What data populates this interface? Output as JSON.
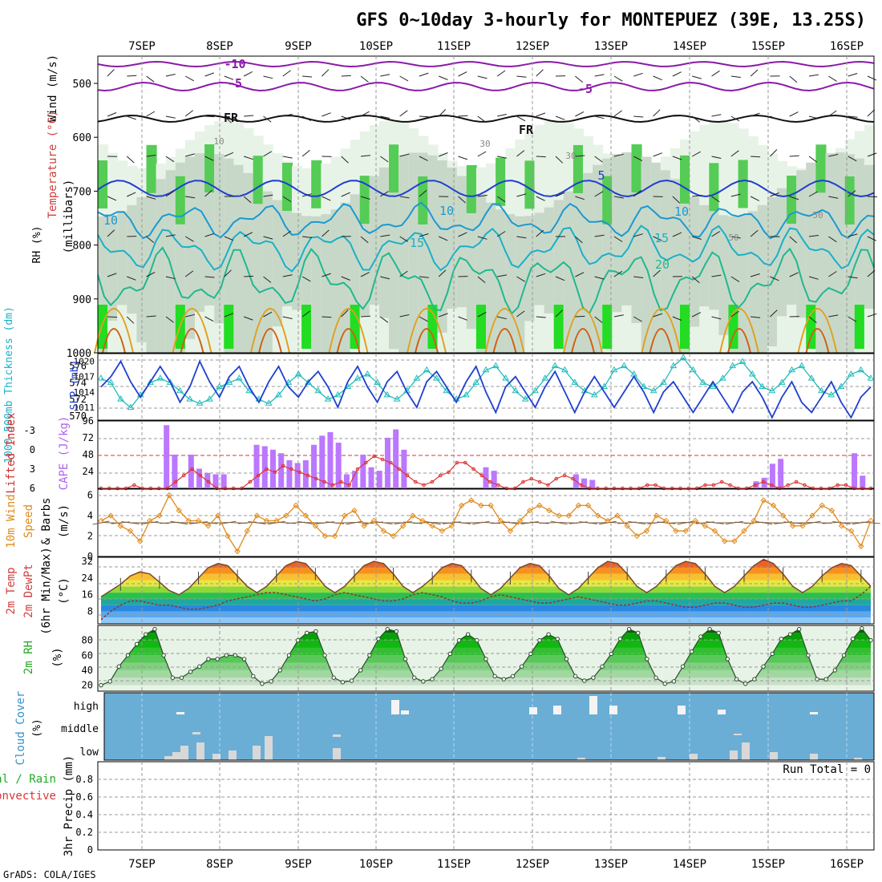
{
  "title": "GFS 0~10day 3-hourly for MONTEPUEZ (39E, 13.25S)",
  "footer": "GrADS: COLA/IGES",
  "dates": [
    "7SEP",
    "8SEP",
    "9SEP",
    "10SEP",
    "11SEP",
    "12SEP",
    "13SEP",
    "14SEP",
    "15SEP",
    "16SEP"
  ],
  "colors": {
    "temp_line": "#3a3a3a",
    "rh_green": "#22bb22",
    "cape_bar": "#bb77ff",
    "lifted_index": "#dd3333",
    "wind_speed": "#e08a1a",
    "slp_line": "#1f3fd0",
    "thickness_line": "#22bbbb",
    "cloud_bg": "#6aaed6",
    "cloud_bar": "#d8d8d8"
  },
  "panels": {
    "upper": {
      "label_wind": "Wind (m/s)",
      "label_temp": "Temperature (°C)",
      "label_rh": "RH (%)",
      "label_mb": "(millibars)",
      "yticks": [
        "500",
        "600",
        "700",
        "800",
        "900",
        "1000"
      ],
      "contour_labels": [
        "-10",
        "-5",
        "-5",
        "FR",
        "FR",
        "5",
        "10",
        "10",
        "10",
        "15",
        "15",
        "20",
        "10",
        "30",
        "30",
        "50",
        "50"
      ]
    },
    "slp": {
      "label_thick": "1000-500mb Thickness (dm)",
      "label_slp": "SLP (mb)",
      "left_ticks": [
        "576",
        "574",
        "572",
        "570"
      ],
      "right_ticks": [
        "1020",
        "1017",
        "1014",
        "1011"
      ]
    },
    "cape": {
      "label_li": "Lifted Index",
      "label_cape": "CAPE (J/kg)",
      "left_ticks": [
        "-3",
        "0",
        "3",
        "6"
      ],
      "right_ticks": [
        "96",
        "72",
        "48",
        "24"
      ]
    },
    "wind": {
      "label_a": "10m Wind",
      "label_b": "Speed",
      "label_c": "& Barbs",
      "label_unit": "(m/s)",
      "yticks": [
        "6",
        "4",
        "2",
        "0"
      ]
    },
    "temp": {
      "label_a": "2m Temp",
      "label_b": "2m DewPt",
      "label_c": "(6hr Min/Max)",
      "label_unit": "(°C)",
      "yticks": [
        "32",
        "24",
        "16",
        "8"
      ]
    },
    "rh": {
      "label_a": "2m RH",
      "label_unit": "(%)",
      "yticks": [
        "80",
        "60",
        "40",
        "20"
      ]
    },
    "cloud": {
      "label_a": "Cloud Cover",
      "label_unit": "(%)",
      "rows": [
        "high",
        "middle",
        "low"
      ]
    },
    "precip": {
      "label_a": "Total / Rain",
      "label_b": "Convective",
      "label_c": "3hr Precip (mm)",
      "run_total": "Run Total = 0",
      "yticks": [
        "0.8",
        "0.6",
        "0.4",
        "0.2",
        "0"
      ]
    }
  },
  "chart_data": {
    "type": "line",
    "x": [
      "7SEP",
      "8SEP",
      "9SEP",
      "10SEP",
      "11SEP",
      "12SEP",
      "13SEP",
      "14SEP",
      "15SEP",
      "16SEP"
    ],
    "slp_mb": [
      1015,
      1017,
      1020,
      1016,
      1013,
      1016,
      1019,
      1016,
      1012,
      1015,
      1020,
      1016,
      1013,
      1017,
      1019,
      1015,
      1012,
      1016,
      1019,
      1015,
      1013,
      1016,
      1018,
      1015,
      1011,
      1016,
      1019,
      1015,
      1012,
      1016,
      1018,
      1014,
      1011,
      1016,
      1018,
      1015,
      1012,
      1016,
      1019,
      1014,
      1010,
      1015,
      1017,
      1014,
      1011,
      1015,
      1018,
      1014,
      1010,
      1014,
      1017,
      1014,
      1011,
      1014,
      1017,
      1014,
      1010,
      1014,
      1016,
      1013,
      1010,
      1013,
      1016,
      1013,
      1010,
      1014,
      1016,
      1013,
      1009,
      1013,
      1016,
      1012,
      1010,
      1013,
      1016,
      1012,
      1009,
      1013,
      1015
    ],
    "thickness_dm": [
      574.5,
      574.0,
      572.0,
      571.0,
      572.5,
      574.0,
      574.5,
      574.0,
      573.0,
      572.0,
      571.5,
      572.0,
      573.5,
      574.0,
      574.5,
      573.0,
      572.0,
      571.5,
      572.5,
      574.0,
      575.0,
      574.0,
      573.0,
      572.0,
      572.5,
      573.5,
      574.5,
      575.0,
      574.0,
      572.5,
      572.0,
      573.0,
      574.5,
      575.5,
      574.5,
      573.0,
      572.0,
      572.5,
      574.0,
      575.5,
      576.0,
      574.5,
      573.0,
      572.0,
      573.0,
      574.5,
      576.0,
      575.5,
      574.0,
      573.0,
      572.5,
      573.5,
      575.5,
      576.0,
      575.0,
      573.5,
      573.0,
      574.0,
      576.0,
      577.0,
      575.5,
      574.0,
      573.5,
      574.5,
      576.0,
      576.5,
      575.0,
      573.5,
      573.0,
      574.0,
      575.5,
      576.0,
      574.5,
      573.0,
      572.5,
      573.5,
      575.0,
      575.5,
      574.5
    ],
    "cape_jkg": [
      0,
      0,
      0,
      0,
      0,
      0,
      0,
      0,
      90,
      48,
      0,
      48,
      28,
      22,
      20,
      20,
      0,
      0,
      0,
      62,
      60,
      55,
      50,
      40,
      36,
      40,
      62,
      75,
      80,
      65,
      20,
      25,
      48,
      30,
      25,
      72,
      84,
      55,
      0,
      0,
      0,
      0,
      0,
      0,
      0,
      0,
      0,
      30,
      25,
      0,
      0,
      0,
      0,
      0,
      0,
      0,
      0,
      0,
      20,
      14,
      12,
      0,
      0,
      0,
      0,
      0,
      0,
      0,
      0,
      0,
      0,
      0,
      0,
      0,
      0,
      0,
      0,
      0,
      0,
      0,
      10,
      15,
      35,
      42,
      0,
      0,
      0,
      0,
      0,
      0,
      0,
      0,
      50,
      18,
      0
    ],
    "lifted_index": [
      6,
      6,
      6,
      6,
      5.5,
      6,
      6,
      6,
      6,
      5,
      4,
      3,
      4,
      5,
      6,
      6,
      6,
      6,
      5,
      4,
      3,
      3.5,
      2.5,
      3,
      3.5,
      4,
      4.5,
      5,
      5.5,
      5,
      5.5,
      3,
      2,
      1,
      1.5,
      2,
      3,
      4,
      5,
      5.5,
      5,
      4,
      3.5,
      2,
      2,
      3,
      4,
      5,
      5.5,
      6,
      6,
      5,
      4.5,
      5,
      5.5,
      4.5,
      4,
      4.5,
      5.5,
      6,
      6,
      6,
      6,
      6,
      6,
      6,
      5.5,
      5.5,
      6,
      6,
      6,
      6,
      6,
      5.5,
      5.5,
      5,
      5.5,
      6,
      6,
      5.5,
      5,
      5.5,
      6,
      5.5,
      5,
      5.5,
      6,
      6,
      6,
      5.5,
      5.5,
      6,
      6,
      6
    ],
    "wind_speed_ms": [
      3.5,
      4,
      3,
      2.5,
      1.5,
      3.5,
      4,
      6,
      4.5,
      3.5,
      3.5,
      3,
      4,
      2,
      0.5,
      2.5,
      4,
      3.5,
      3.5,
      4,
      5,
      4,
      3,
      2,
      2,
      4,
      4.5,
      3,
      3.5,
      2.5,
      2,
      3,
      4,
      3.5,
      3,
      2.5,
      3,
      5,
      5.5,
      5,
      5,
      3.5,
      2.5,
      3.5,
      4.5,
      5,
      4.5,
      4,
      4,
      5,
      5,
      4,
      3.5,
      4,
      3,
      2,
      2.5,
      4,
      3.5,
      2.5,
      2.5,
      3.5,
      3,
      2.5,
      1.5,
      1.5,
      2.5,
      3.5,
      5.5,
      5,
      4,
      3,
      3,
      4,
      5,
      4.5,
      3,
      2.5,
      1,
      3.5
    ],
    "temp_2m_c": [
      15,
      18,
      21,
      25,
      27,
      26,
      22,
      18,
      16,
      19,
      24,
      29,
      31,
      30,
      25,
      20,
      17,
      20,
      25,
      30,
      32,
      31,
      26,
      20,
      17,
      20,
      25,
      30,
      32,
      31,
      26,
      20,
      17,
      20,
      24,
      29,
      31,
      30,
      25,
      19,
      16,
      19,
      24,
      29,
      31,
      30,
      25,
      19,
      16,
      19,
      24,
      29,
      32,
      31,
      26,
      20,
      17,
      20,
      25,
      30,
      32,
      31,
      26,
      20,
      17,
      20,
      25,
      30,
      33,
      31,
      26,
      20,
      17,
      20,
      25,
      29,
      31,
      30,
      25,
      20
    ],
    "dewpt_2m_c": [
      4,
      8,
      11,
      13,
      13,
      12,
      11,
      11,
      10,
      9,
      9,
      10,
      11,
      13,
      14,
      15,
      16,
      17,
      17,
      16,
      15,
      14,
      13,
      14,
      16,
      17,
      16,
      15,
      14,
      13,
      13,
      14,
      16,
      17,
      16,
      15,
      13,
      12,
      12,
      13,
      15,
      16,
      15,
      14,
      13,
      12,
      12,
      13,
      14,
      15,
      14,
      13,
      12,
      11,
      11,
      12,
      13,
      13,
      12,
      11,
      10,
      10,
      11,
      12,
      12,
      11,
      10,
      10,
      11,
      12,
      12,
      11,
      10,
      10,
      11,
      12,
      13,
      13,
      16,
      20
    ],
    "rh_2m_pct": [
      20,
      25,
      45,
      60,
      75,
      88,
      95,
      60,
      30,
      30,
      38,
      45,
      55,
      55,
      60,
      60,
      55,
      32,
      22,
      25,
      40,
      60,
      80,
      90,
      92,
      60,
      30,
      24,
      26,
      40,
      60,
      82,
      95,
      92,
      55,
      30,
      25,
      28,
      42,
      62,
      80,
      88,
      80,
      55,
      32,
      28,
      32,
      45,
      62,
      80,
      88,
      82,
      55,
      32,
      26,
      30,
      45,
      62,
      82,
      95,
      90,
      55,
      30,
      22,
      25,
      45,
      65,
      85,
      95,
      90,
      55,
      28,
      22,
      28,
      45,
      62,
      82,
      88,
      95,
      60,
      28,
      28,
      40,
      60,
      82,
      96,
      80
    ]
  }
}
